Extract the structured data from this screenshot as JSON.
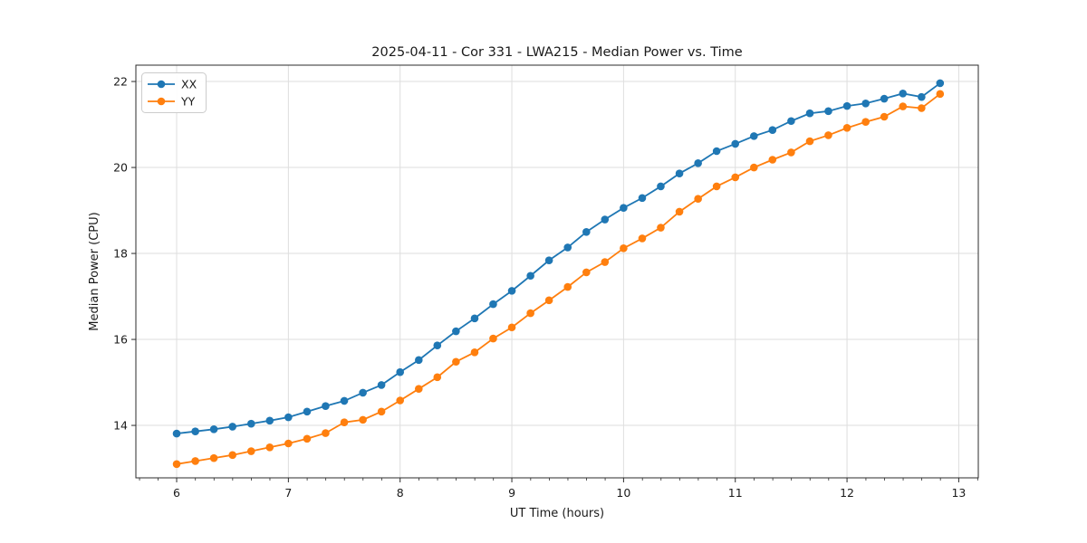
{
  "chart_data": {
    "type": "line",
    "title": "2025-04-11 - Cor 331 - LWA215 - Median Power vs. Time",
    "xlabel": "UT Time (hours)",
    "ylabel": "Median Power (CPU)",
    "xlim": [
      5.635,
      13.175
    ],
    "ylim": [
      12.78,
      22.38
    ],
    "xticks": [
      6,
      7,
      8,
      9,
      10,
      11,
      12,
      13
    ],
    "yticks": [
      14,
      16,
      18,
      20,
      22
    ],
    "x_minor_step": 0.1667,
    "grid": true,
    "legend_position": "upper left",
    "x": [
      6.0,
      6.167,
      6.333,
      6.5,
      6.667,
      6.833,
      7.0,
      7.167,
      7.333,
      7.5,
      7.667,
      7.833,
      8.0,
      8.167,
      8.333,
      8.5,
      8.667,
      8.833,
      9.0,
      9.167,
      9.333,
      9.5,
      9.667,
      9.833,
      10.0,
      10.167,
      10.333,
      10.5,
      10.667,
      10.833,
      11.0,
      11.167,
      11.333,
      11.5,
      11.667,
      11.833,
      12.0,
      12.167,
      12.333,
      12.5,
      12.667,
      12.833
    ],
    "series": [
      {
        "name": "XX",
        "color": "#1f77b4",
        "values": [
          13.81,
          13.86,
          13.91,
          13.97,
          14.04,
          14.11,
          14.19,
          14.32,
          14.45,
          14.57,
          14.76,
          14.94,
          15.24,
          15.52,
          15.86,
          16.19,
          16.49,
          16.82,
          17.13,
          17.48,
          17.84,
          18.14,
          18.5,
          18.79,
          19.06,
          19.29,
          19.56,
          19.86,
          20.1,
          20.38,
          20.55,
          20.73,
          20.87,
          21.08,
          21.26,
          21.31,
          21.43,
          21.49,
          21.6,
          21.72,
          21.64,
          21.96
        ]
      },
      {
        "name": "YY",
        "color": "#ff7f0e",
        "values": [
          13.1,
          13.17,
          13.24,
          13.31,
          13.4,
          13.49,
          13.58,
          13.69,
          13.82,
          14.07,
          14.13,
          14.32,
          14.58,
          14.85,
          15.12,
          15.48,
          15.7,
          16.02,
          16.28,
          16.61,
          16.91,
          17.22,
          17.56,
          17.8,
          18.12,
          18.35,
          18.6,
          18.97,
          19.27,
          19.56,
          19.77,
          20.0,
          20.18,
          20.35,
          20.61,
          20.75,
          20.92,
          21.06,
          21.18,
          21.42,
          21.38,
          21.71
        ]
      }
    ],
    "style": {
      "grid_color": "#dedede",
      "spine_color": "#2b2b2b",
      "tick_color": "#2b2b2b",
      "legend_border_color": "#cccccc",
      "legend_bg_color": "#ffffff",
      "background_color": "#ffffff"
    }
  }
}
